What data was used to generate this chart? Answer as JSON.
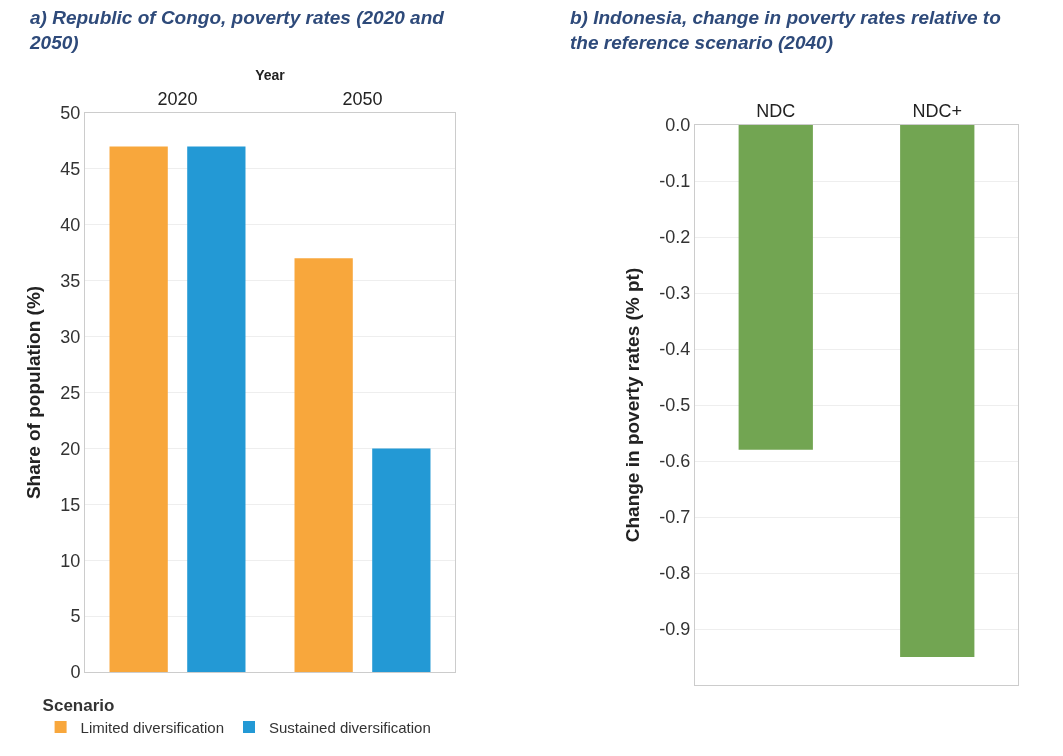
{
  "chart_data": [
    {
      "type": "bar",
      "title": "a) Republic of Congo, poverty rates (2020 and 2050)",
      "xlabel": "Year",
      "ylabel": "Share of population (%)",
      "legend_title": "Scenario",
      "categories": [
        "2020",
        "2050"
      ],
      "series": [
        {
          "name": "Limited diversification",
          "color": "#f8a73c",
          "values": [
            47,
            37
          ]
        },
        {
          "name": "Sustained diversification",
          "color": "#2399d5",
          "values": [
            47,
            20
          ]
        }
      ],
      "ylim": [
        0,
        50
      ],
      "yticks": [
        0,
        5,
        10,
        15,
        20,
        25,
        30,
        35,
        40,
        45,
        50
      ],
      "grid": "y",
      "legend": "bottom left"
    },
    {
      "type": "bar",
      "title": "b) Indonesia, change in poverty rates relative to the reference scenario (2040)",
      "ylabel": "Change in poverty rates (% pt)",
      "categories": [
        "NDC",
        "NDC+"
      ],
      "series": [
        {
          "color": "#72a552",
          "values": [
            -0.58,
            -0.95
          ]
        }
      ],
      "ylim": [
        -1.0,
        0
      ],
      "yticks": [
        {
          "value": 0,
          "label": "0.0"
        },
        -0.1,
        -0.2,
        -0.3,
        -0.4,
        -0.5,
        -0.6,
        -0.7,
        -0.8,
        -0.9
      ],
      "grid": "y"
    }
  ]
}
